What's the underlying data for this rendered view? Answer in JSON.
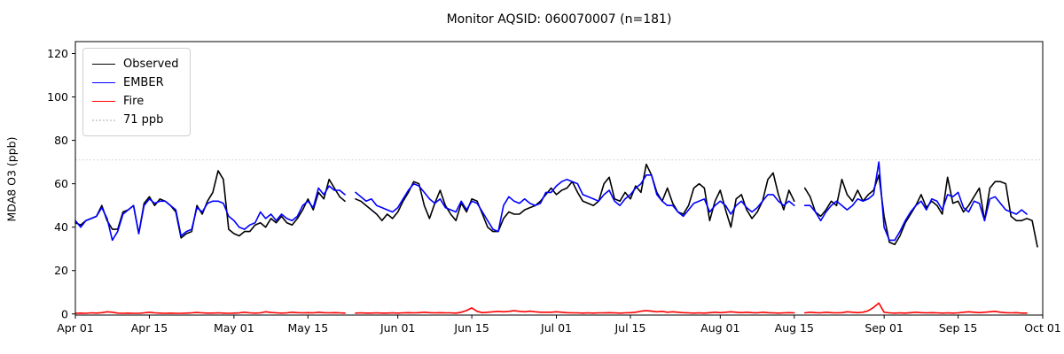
{
  "chart_data": {
    "type": "line",
    "title": "Monitor AQSID: 060070007 (n=181)",
    "xlabel": "",
    "ylabel": "MDA8 O3 (ppb)",
    "ylim": [
      0,
      125
    ],
    "yticks": [
      0,
      20,
      40,
      60,
      80,
      100,
      120
    ],
    "xtick_labels": [
      "Apr 01",
      "Apr 15",
      "May 01",
      "May 15",
      "Jun 01",
      "Jun 15",
      "Jul 01",
      "Jul 15",
      "Aug 01",
      "Aug 15",
      "Sep 01",
      "Sep 15",
      "Oct 01"
    ],
    "xtick_days": [
      0,
      14,
      30,
      44,
      61,
      75,
      91,
      105,
      122,
      136,
      153,
      167,
      183
    ],
    "x_total_days": 183,
    "x_start": "Apr 01",
    "x_end": "Oct 01",
    "grid": false,
    "legend_position": "upper left",
    "threshold": {
      "label": "71 ppb",
      "value": 71,
      "color": "#d3d3d3",
      "style": "dotted"
    },
    "series": [
      {
        "name": "Observed",
        "color": "#000000",
        "values": [
          42,
          41,
          43,
          44,
          45,
          50,
          43,
          39,
          39,
          47,
          48,
          50,
          37,
          51,
          54,
          50,
          53,
          52,
          50,
          47,
          35,
          37,
          38,
          50,
          46,
          52,
          56,
          66,
          62,
          39,
          37,
          36,
          38,
          38,
          41,
          42,
          40,
          44,
          42,
          45,
          42,
          41,
          44,
          48,
          53,
          48,
          56,
          53,
          62,
          58,
          54,
          52,
          null,
          53,
          52,
          50,
          48,
          46,
          43,
          46,
          44,
          47,
          52,
          56,
          61,
          60,
          50,
          44,
          51,
          57,
          50,
          46,
          43,
          51,
          47,
          53,
          52,
          46,
          40,
          38,
          38,
          44,
          47,
          46,
          46,
          48,
          49,
          50,
          52,
          55,
          58,
          55,
          57,
          58,
          61,
          56,
          52,
          51,
          50,
          52,
          60,
          63,
          53,
          52,
          56,
          53,
          59,
          56,
          69,
          64,
          56,
          52,
          58,
          51,
          47,
          46,
          50,
          58,
          60,
          58,
          43,
          52,
          57,
          48,
          40,
          53,
          55,
          48,
          44,
          47,
          52,
          62,
          65,
          55,
          48,
          57,
          52,
          null,
          58,
          54,
          47,
          45,
          48,
          52,
          50,
          62,
          55,
          52,
          57,
          52,
          55,
          57,
          64,
          45,
          33,
          32,
          36,
          42,
          46,
          50,
          55,
          49,
          52,
          50,
          46,
          63,
          51,
          52,
          47,
          50,
          54,
          58,
          43,
          58,
          61,
          61,
          60,
          45,
          43,
          43,
          44,
          43,
          31
        ]
      },
      {
        "name": "EMBER",
        "color": "#0000ff",
        "values": [
          43,
          40,
          43,
          44,
          45,
          49,
          44,
          34,
          38,
          46,
          48,
          50,
          37,
          50,
          53,
          51,
          52,
          52,
          50,
          48,
          36,
          38,
          39,
          49,
          47,
          51,
          52,
          52,
          51,
          45,
          43,
          40,
          39,
          41,
          42,
          47,
          44,
          46,
          43,
          46,
          44,
          43,
          45,
          50,
          52,
          49,
          58,
          55,
          59,
          57,
          57,
          55,
          null,
          56,
          54,
          52,
          53,
          50,
          49,
          48,
          47,
          49,
          53,
          57,
          60,
          59,
          56,
          53,
          51,
          53,
          49,
          48,
          47,
          52,
          48,
          52,
          51,
          47,
          43,
          39,
          38,
          50,
          54,
          52,
          51,
          53,
          51,
          50,
          51,
          56,
          56,
          59,
          61,
          62,
          61,
          60,
          55,
          54,
          53,
          52,
          55,
          57,
          52,
          50,
          53,
          55,
          58,
          60,
          64,
          64,
          55,
          52,
          50,
          50,
          47,
          45,
          48,
          51,
          52,
          53,
          47,
          50,
          52,
          50,
          46,
          50,
          52,
          49,
          47,
          49,
          52,
          55,
          55,
          52,
          50,
          52,
          50,
          null,
          50,
          50,
          47,
          43,
          47,
          50,
          52,
          50,
          48,
          50,
          53,
          52,
          53,
          55,
          70,
          40,
          34,
          34,
          38,
          43,
          47,
          50,
          52,
          48,
          53,
          52,
          48,
          55,
          54,
          56,
          49,
          47,
          52,
          51,
          43,
          53,
          54,
          51,
          48,
          47,
          46,
          48,
          46,
          null,
          null
        ]
      },
      {
        "name": "Fire",
        "color": "#ff0000",
        "values": [
          0.3,
          0.4,
          0.3,
          0.5,
          0.4,
          0.6,
          1.0,
          0.8,
          0.4,
          0.3,
          0.4,
          0.3,
          0.3,
          0.5,
          0.8,
          0.5,
          0.4,
          0.3,
          0.4,
          0.3,
          0.3,
          0.4,
          0.5,
          0.7,
          0.5,
          0.4,
          0.4,
          0.5,
          0.4,
          0.3,
          0.4,
          0.5,
          0.8,
          0.5,
          0.4,
          0.5,
          1.0,
          0.7,
          0.5,
          0.4,
          0.5,
          0.8,
          0.6,
          0.5,
          0.6,
          0.5,
          0.8,
          0.6,
          0.5,
          0.6,
          0.5,
          0.4,
          null,
          0.4,
          0.5,
          0.4,
          0.4,
          0.5,
          0.4,
          0.4,
          0.5,
          0.4,
          0.5,
          0.6,
          0.5,
          0.6,
          0.8,
          0.6,
          0.5,
          0.6,
          0.5,
          0.5,
          0.4,
          0.8,
          1.6,
          2.8,
          1.2,
          0.6,
          0.8,
          1.0,
          1.2,
          1.0,
          1.2,
          1.5,
          1.2,
          1.0,
          1.3,
          1.0,
          0.8,
          0.8,
          0.8,
          1.0,
          0.8,
          0.6,
          0.5,
          0.5,
          0.4,
          0.5,
          0.4,
          0.5,
          0.5,
          0.6,
          0.5,
          0.4,
          0.5,
          0.6,
          0.8,
          1.3,
          1.5,
          1.3,
          1.0,
          1.2,
          0.8,
          1.0,
          0.8,
          0.6,
          0.5,
          0.4,
          0.5,
          0.4,
          0.6,
          0.8,
          0.6,
          0.8,
          1.0,
          0.8,
          0.6,
          0.8,
          0.6,
          0.5,
          0.8,
          0.6,
          0.5,
          0.4,
          0.5,
          0.6,
          0.5,
          null,
          0.5,
          0.8,
          0.6,
          0.5,
          0.8,
          0.6,
          0.5,
          0.6,
          1.0,
          0.8,
          0.6,
          0.8,
          1.5,
          3.0,
          5.0,
          0.8,
          0.5,
          0.4,
          0.5,
          0.4,
          0.6,
          0.8,
          0.6,
          0.5,
          0.6,
          0.5,
          0.4,
          0.5,
          0.4,
          0.5,
          0.8,
          1.0,
          0.8,
          0.6,
          0.8,
          1.0,
          1.2,
          0.8,
          0.6,
          0.5,
          0.6,
          0.4,
          0.4,
          null,
          null
        ]
      }
    ]
  }
}
